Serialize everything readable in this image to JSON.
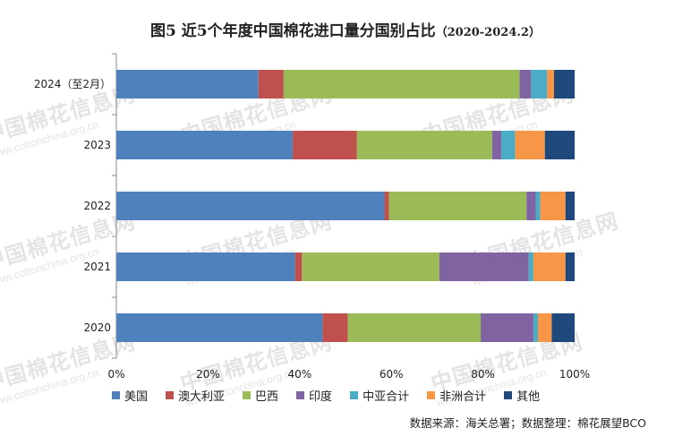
{
  "title": "图5 近5个年度中国棉花进口量分国别占比",
  "subtitle": "（2020-2024.2）",
  "source": "数据来源：海关总署；数据整理：棉花展望BCO",
  "watermark": "中国棉花信息网",
  "watermark_url": "www.cottonchina.org.cn",
  "chart_data": {
    "type": "bar",
    "orientation": "horizontal",
    "stacked": true,
    "percent": true,
    "categories": [
      "2024（至2月）",
      "2023",
      "2022",
      "2021",
      "2020"
    ],
    "xlim": [
      0,
      100
    ],
    "xticks": [
      "0%",
      "20%",
      "40%",
      "60%",
      "80%",
      "100%"
    ],
    "grid": false,
    "legend_position": "bottom",
    "series": [
      {
        "name": "美国",
        "color": "#4f81bd",
        "values": [
          31,
          38.5,
          58.5,
          39,
          45
        ]
      },
      {
        "name": "澳大利亚",
        "color": "#c0504d",
        "values": [
          5.5,
          14,
          1,
          1.5,
          5.5
        ]
      },
      {
        "name": "巴西",
        "color": "#9bbb59",
        "values": [
          51.5,
          29.5,
          30,
          30,
          29
        ]
      },
      {
        "name": "印度",
        "color": "#8064a2",
        "values": [
          2.5,
          2,
          2,
          19.5,
          11.5
        ]
      },
      {
        "name": "中亚合计",
        "color": "#4bacc6",
        "values": [
          3.5,
          3,
          1,
          1,
          1
        ]
      },
      {
        "name": "非洲合计",
        "color": "#f79646",
        "values": [
          1.5,
          6.5,
          5.5,
          7,
          3
        ]
      },
      {
        "name": "其他",
        "color": "#1f497d",
        "values": [
          4.5,
          6.5,
          2,
          2,
          5
        ]
      }
    ]
  }
}
